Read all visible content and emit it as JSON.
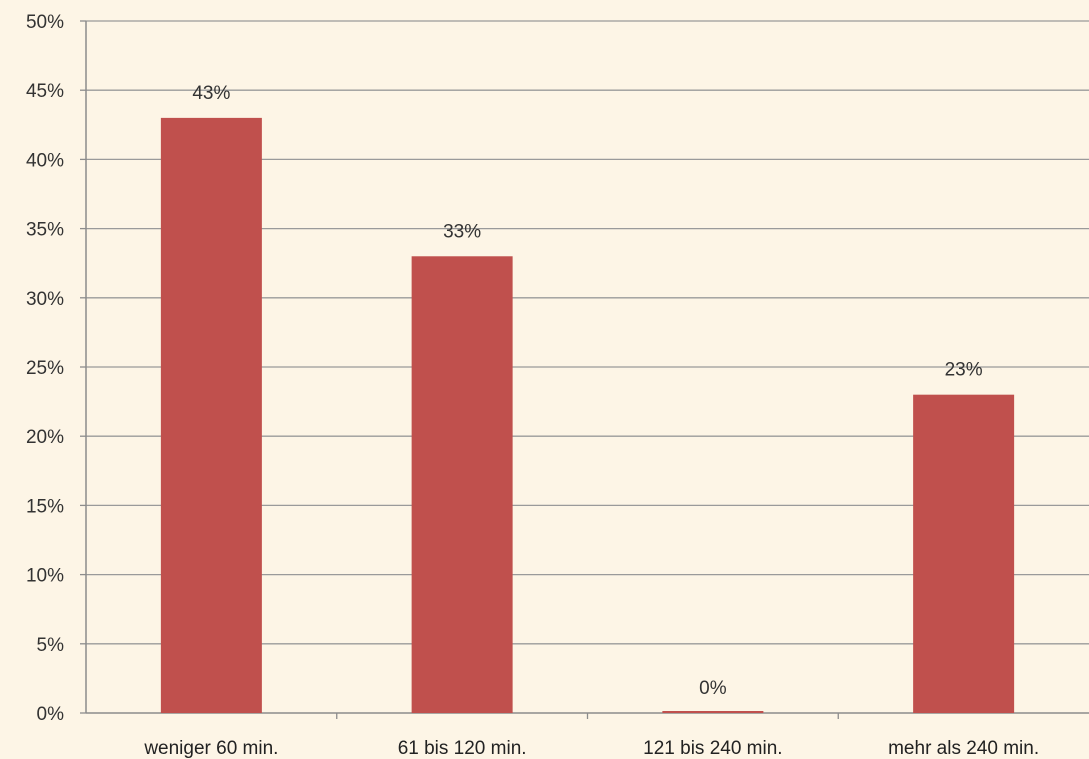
{
  "chart_data": {
    "type": "bar",
    "categories": [
      "weniger 60 min.",
      "61 bis 120 min.",
      "121 bis 240 min.",
      "mehr als 240 min."
    ],
    "values": [
      43,
      33,
      0,
      23
    ],
    "data_labels": [
      "43%",
      "33%",
      "0%",
      "23%"
    ],
    "title": "",
    "xlabel": "",
    "ylabel": "",
    "ylim": [
      0,
      50
    ],
    "y_ticks": [
      0,
      5,
      10,
      15,
      20,
      25,
      30,
      35,
      40,
      45,
      50
    ],
    "y_tick_labels": [
      "0%",
      "5%",
      "10%",
      "15%",
      "20%",
      "25%",
      "30%",
      "35%",
      "40%",
      "45%",
      "50%"
    ],
    "grid": true,
    "legend": "none",
    "colors": {
      "bar": "#c0504d",
      "background": "#fdf5e6",
      "grid": "#9a9a9a",
      "axis": "#8c8c8c"
    }
  }
}
